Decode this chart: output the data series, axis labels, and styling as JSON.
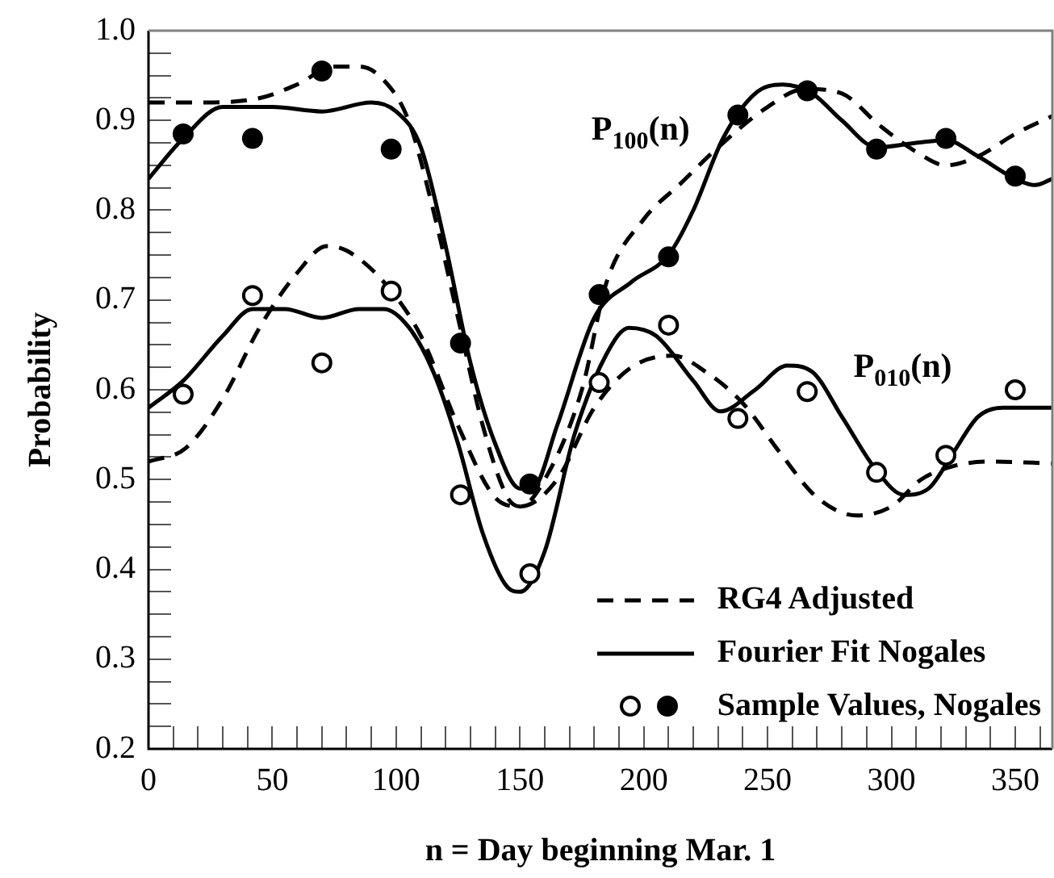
{
  "chart_data": {
    "type": "line",
    "xlabel": "n = Day beginning Mar. 1",
    "ylabel": "Probability",
    "xlim": [
      0,
      365
    ],
    "ylim": [
      0.2,
      1.0
    ],
    "xticks": [
      0,
      {
        "value": 10,
        "label": null
      },
      {
        "value": 20,
        "label": null
      },
      {
        "value": 30,
        "label": null
      },
      {
        "value": 40,
        "label": null
      },
      50,
      {
        "value": 60,
        "label": null
      },
      {
        "value": 70,
        "label": null
      },
      {
        "value": 80,
        "label": null
      },
      {
        "value": 90,
        "label": null
      },
      100,
      {
        "value": 110,
        "label": null
      },
      {
        "value": 120,
        "label": null
      },
      {
        "value": 130,
        "label": null
      },
      {
        "value": 140,
        "label": null
      },
      150,
      {
        "value": 160,
        "label": null
      },
      {
        "value": 170,
        "label": null
      },
      {
        "value": 180,
        "label": null
      },
      {
        "value": 190,
        "label": null
      },
      200,
      {
        "value": 210,
        "label": null
      },
      {
        "value": 220,
        "label": null
      },
      {
        "value": 230,
        "label": null
      },
      {
        "value": 240,
        "label": null
      },
      250,
      {
        "value": 260,
        "label": null
      },
      {
        "value": 270,
        "label": null
      },
      {
        "value": 280,
        "label": null
      },
      {
        "value": 290,
        "label": null
      },
      300,
      {
        "value": 310,
        "label": null
      },
      {
        "value": 320,
        "label": null
      },
      {
        "value": 330,
        "label": null
      },
      {
        "value": 340,
        "label": null
      },
      350,
      {
        "value": 360,
        "label": null
      }
    ],
    "yticks": [
      {
        "value": 0.2,
        "label": "0.2"
      },
      {
        "value": 0.225,
        "label": null
      },
      {
        "value": 0.25,
        "label": null
      },
      {
        "value": 0.275,
        "label": null
      },
      {
        "value": 0.3,
        "label": "0.3"
      },
      {
        "value": 0.325,
        "label": null
      },
      {
        "value": 0.35,
        "label": null
      },
      {
        "value": 0.375,
        "label": null
      },
      {
        "value": 0.4,
        "label": "0.4"
      },
      {
        "value": 0.425,
        "label": null
      },
      {
        "value": 0.45,
        "label": null
      },
      {
        "value": 0.475,
        "label": null
      },
      {
        "value": 0.5,
        "label": "0.5"
      },
      {
        "value": 0.525,
        "label": null
      },
      {
        "value": 0.55,
        "label": null
      },
      {
        "value": 0.575,
        "label": null
      },
      {
        "value": 0.6,
        "label": "0.6"
      },
      {
        "value": 0.625,
        "label": null
      },
      {
        "value": 0.65,
        "label": null
      },
      {
        "value": 0.675,
        "label": null
      },
      {
        "value": 0.7,
        "label": "0.7"
      },
      {
        "value": 0.725,
        "label": null
      },
      {
        "value": 0.75,
        "label": null
      },
      {
        "value": 0.775,
        "label": null
      },
      {
        "value": 0.8,
        "label": "0.8"
      },
      {
        "value": 0.825,
        "label": null
      },
      {
        "value": 0.85,
        "label": null
      },
      {
        "value": 0.875,
        "label": null
      },
      {
        "value": 0.9,
        "label": "0.9"
      },
      {
        "value": 0.925,
        "label": null
      },
      {
        "value": 0.95,
        "label": null
      },
      {
        "value": 0.975,
        "label": null
      },
      {
        "value": 1.0,
        "label": "1.0"
      }
    ],
    "grid": false,
    "legend": "bottom right",
    "annotations": [
      "P$_{100}$(n)",
      "P$_{010}$(n)"
    ],
    "series": [
      {
        "name": "RG4 Adjusted",
        "type": "line",
        "line_style": "dashed",
        "marker": "none",
        "color": "#000000",
        "x": [
          0,
          20,
          45,
          60,
          75,
          85,
          95,
          105,
          115,
          125,
          135,
          145,
          150,
          160,
          175,
          185,
          200,
          215,
          230,
          250,
          265,
          280,
          295,
          310,
          322,
          335,
          350,
          365
        ],
        "values": [
          0.92,
          0.92,
          0.925,
          0.94,
          0.96,
          0.96,
          0.945,
          0.9,
          0.8,
          0.68,
          0.56,
          0.48,
          0.47,
          0.5,
          0.6,
          0.72,
          0.79,
          0.83,
          0.87,
          0.915,
          0.935,
          0.93,
          0.895,
          0.865,
          0.85,
          0.86,
          0.885,
          0.905
        ]
      },
      {
        "type": "line",
        "line_style": "dashed",
        "marker": "none",
        "color": "#000000",
        "x": [
          0,
          15,
          30,
          45,
          60,
          72,
          80,
          95,
          110,
          125,
          140,
          150,
          165,
          180,
          195,
          212,
          225,
          240,
          255,
          270,
          286,
          300,
          312,
          325,
          340,
          365
        ],
        "values": [
          0.52,
          0.535,
          0.59,
          0.67,
          0.73,
          0.76,
          0.755,
          0.72,
          0.66,
          0.56,
          0.48,
          0.47,
          0.5,
          0.58,
          0.625,
          0.638,
          0.62,
          0.585,
          0.53,
          0.48,
          0.46,
          0.47,
          0.5,
          0.515,
          0.52,
          0.518
        ]
      },
      {
        "name": "Fourier Fit Nogales",
        "type": "line",
        "line_style": "solid",
        "marker": "none",
        "color": "#000000",
        "x": [
          0,
          14,
          30,
          50,
          70,
          90,
          100,
          110,
          120,
          130,
          140,
          150,
          155,
          165,
          180,
          195,
          210,
          220,
          232,
          245,
          256,
          268,
          280,
          294,
          310,
          322,
          335,
          350,
          358,
          365
        ],
        "values": [
          0.835,
          0.88,
          0.915,
          0.915,
          0.91,
          0.92,
          0.91,
          0.87,
          0.76,
          0.63,
          0.54,
          0.49,
          0.49,
          0.56,
          0.68,
          0.72,
          0.75,
          0.8,
          0.88,
          0.93,
          0.94,
          0.93,
          0.9,
          0.87,
          0.875,
          0.878,
          0.86,
          0.835,
          0.828,
          0.835
        ]
      },
      {
        "type": "line",
        "line_style": "solid",
        "marker": "none",
        "color": "#000000",
        "x": [
          0,
          14,
          30,
          42,
          55,
          70,
          85,
          95,
          105,
          115,
          125,
          135,
          145,
          150,
          160,
          172,
          185,
          194,
          205,
          220,
          231,
          245,
          258,
          268,
          280,
          294,
          305,
          315,
          325,
          335,
          345,
          365
        ],
        "values": [
          0.58,
          0.61,
          0.66,
          0.69,
          0.69,
          0.68,
          0.69,
          0.69,
          0.67,
          0.62,
          0.54,
          0.44,
          0.38,
          0.375,
          0.42,
          0.55,
          0.64,
          0.669,
          0.66,
          0.61,
          0.576,
          0.6,
          0.627,
          0.62,
          0.57,
          0.51,
          0.483,
          0.49,
          0.53,
          0.57,
          0.58,
          0.58
        ]
      },
      {
        "name": "Sample Values, Nogales",
        "type": "scatter",
        "marker": "circle",
        "color": "#000000",
        "x": [
          14,
          42,
          70,
          98,
          126,
          154,
          182,
          210,
          238,
          266,
          294,
          322,
          350
        ],
        "values": [
          0.885,
          0.88,
          0.955,
          0.868,
          0.652,
          0.495,
          0.706,
          0.748,
          0.906,
          0.933,
          0.868,
          0.88,
          0.838
        ]
      },
      {
        "type": "scatter",
        "marker": "circle",
        "color": "#ffffff",
        "x": [
          14,
          42,
          70,
          98,
          126,
          154,
          182,
          210,
          238,
          266,
          294,
          322,
          350
        ],
        "values": [
          0.595,
          0.705,
          0.63,
          0.71,
          0.483,
          0.395,
          0.608,
          0.672,
          0.568,
          0.598,
          0.508,
          0.527,
          0.6
        ]
      }
    ]
  }
}
